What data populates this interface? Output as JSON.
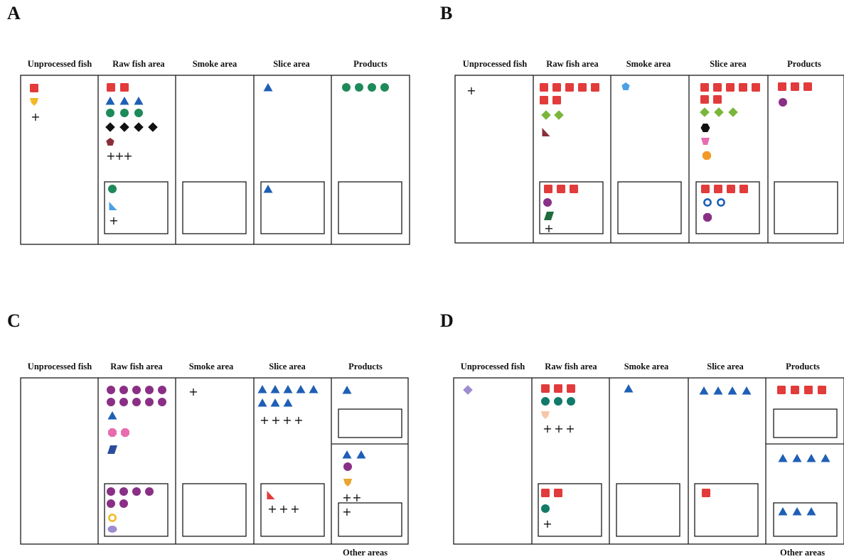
{
  "colors": {
    "red": "#e23b3b",
    "blue": "#1f5fb5",
    "green": "#1e8a5a",
    "teal": "#117a68",
    "black": "#111111",
    "maroon": "#8a2f3a",
    "purple": "#8a2f86",
    "lime": "#7ab63a",
    "yellow": "#f2b928",
    "pink": "#e86bb0",
    "lavender": "#9d8cd0",
    "orange": "#f29a28",
    "peach": "#f6c7a6",
    "gold": "#e8a732",
    "darkgreen": "#1f6b3a",
    "navy": "#2a4d9b",
    "lightblue": "#4aa0e6"
  },
  "panels": [
    {
      "letter": "A",
      "headers": [
        "Unprocessed fish",
        "Raw fish area",
        "Smoke area",
        "Slice area",
        "Products"
      ],
      "footer": ""
    },
    {
      "letter": "B",
      "headers": [
        "Unprocessed fish",
        "Raw fish area",
        "Smoke area",
        "Slice area",
        "Products"
      ],
      "footer": ""
    },
    {
      "letter": "C",
      "headers": [
        "Unprocessed fish",
        "Raw fish area",
        "Smoke area",
        "Slice area",
        "Products"
      ],
      "footer": "Other areas"
    },
    {
      "letter": "D",
      "headers": [
        "Unprocessed fish",
        "Raw fish area",
        "Smoke area",
        "Slice area",
        "Products"
      ],
      "footer": "Other areas"
    }
  ]
}
